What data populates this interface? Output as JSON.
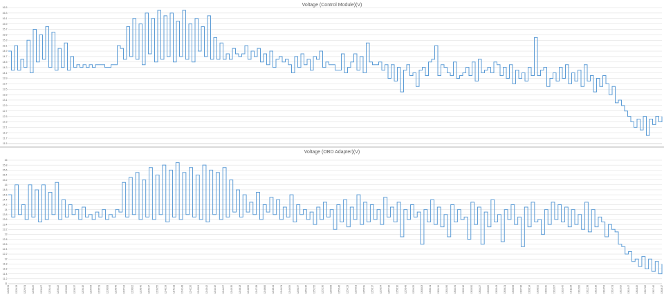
{
  "colors": {
    "series": "#5b9bd5",
    "grid": "#d9d9d9",
    "text": "#595959",
    "background": "#ffffff"
  },
  "chart_data": [
    {
      "type": "line",
      "title": "Voltage (Control Module)(V)",
      "xlabel": "",
      "ylabel": "",
      "ylim": [
        11.5,
        16.5
      ],
      "yticks": [
        11.5,
        11.7,
        11.9,
        12.1,
        12.3,
        12.5,
        12.7,
        12.9,
        13.1,
        13.3,
        13.5,
        13.7,
        13.9,
        14.1,
        14.3,
        14.5,
        14.7,
        14.9,
        15.1,
        15.3,
        15.5,
        15.7,
        15.9,
        16.1,
        16.3,
        16.5
      ],
      "ytick_labels": [
        "11.5",
        "11.7",
        "11.9",
        "12.1",
        "12.3",
        "12.5",
        "12.7",
        "12.9",
        "13.1",
        "13.3",
        "13.5",
        "13.7",
        "13.9",
        "14.1",
        "14.3",
        "14.5",
        "14.7",
        "14.9",
        "15.1",
        "15.3",
        "15.5",
        "15.7",
        "15.9",
        "16.1",
        "16.3",
        "16.5"
      ],
      "grid": true,
      "legend": "none",
      "series": [
        {
          "values": [
            14.9,
            14.2,
            15.1,
            14.2,
            14.6,
            14.3,
            15.3,
            14.1,
            15.7,
            14.5,
            15.5,
            14.6,
            15.8,
            14.3,
            15.6,
            14.2,
            15.0,
            14.3,
            15.2,
            14.2,
            14.7,
            14.3,
            14.4,
            14.3,
            14.4,
            14.3,
            14.4,
            14.3,
            14.4,
            14.4,
            14.4,
            14.3,
            14.3,
            14.4,
            14.4,
            15.1,
            15.0,
            14.6,
            15.8,
            14.7,
            16.1,
            14.6,
            15.9,
            14.4,
            16.3,
            14.8,
            16.1,
            14.5,
            16.4,
            14.6,
            16.2,
            14.7,
            16.3,
            14.5,
            16.0,
            14.7,
            16.4,
            14.6,
            15.9,
            14.5,
            16.1,
            14.9,
            15.8,
            14.7,
            16.2,
            14.6,
            15.4,
            14.6,
            15.2,
            14.6,
            14.8,
            14.6,
            15.0,
            14.8,
            14.7,
            14.8,
            15.1,
            14.6,
            14.9,
            14.7,
            15.0,
            14.5,
            14.8,
            14.4,
            14.9,
            14.3,
            14.6,
            14.7,
            14.5,
            14.6,
            14.4,
            14.1,
            14.7,
            14.3,
            14.8,
            14.4,
            14.6,
            14.2,
            14.7,
            14.6,
            14.9,
            14.3,
            14.5,
            14.4,
            14.4,
            14.2,
            14.2,
            14.8,
            14.1,
            14.3,
            14.5,
            14.8,
            14.2,
            14.7,
            14.1,
            15.2,
            14.5,
            14.4,
            14.4,
            14.5,
            14.2,
            14.4,
            13.9,
            14.4,
            13.8,
            14.3,
            13.4,
            14.2,
            14.4,
            14.0,
            14.1,
            13.6,
            14.2,
            14.3,
            14.0,
            14.5,
            14.6,
            15.1,
            14.0,
            14.4,
            14.3,
            14.1,
            14.0,
            14.5,
            13.9,
            14.0,
            14.1,
            14.3,
            14.0,
            14.5,
            13.8,
            14.6,
            14.1,
            14.2,
            14.3,
            14.1,
            14.5,
            14.4,
            14.0,
            14.3,
            13.9,
            14.4,
            13.7,
            14.2,
            13.9,
            14.1,
            13.8,
            14.3,
            14.0,
            15.4,
            14.0,
            14.2,
            14.3,
            13.6,
            13.9,
            14.1,
            13.8,
            14.3,
            13.9,
            14.4,
            13.7,
            14.1,
            13.8,
            14.2,
            13.6,
            14.4,
            13.8,
            14.0,
            13.4,
            13.9,
            13.6,
            14.0,
            13.7,
            13.3,
            13.6,
            13.0,
            13.1,
            12.9,
            12.7,
            12.5,
            12.3,
            12.1,
            12.4,
            12.0,
            12.5,
            11.8,
            12.4,
            12.2,
            12.5,
            12.3,
            12.5
          ]
        }
      ]
    },
    {
      "type": "line",
      "title": "Voltage (OBD Adapter)(V)",
      "xlabel": "",
      "ylabel": "",
      "ylim": [
        11.0,
        16.0
      ],
      "yticks": [
        11.0,
        11.2,
        11.4,
        11.6,
        11.8,
        12.0,
        12.2,
        12.4,
        12.6,
        12.8,
        13.0,
        13.2,
        13.4,
        13.6,
        13.8,
        14.0,
        14.2,
        14.4,
        14.6,
        14.8,
        15.0,
        15.2,
        15.4,
        15.6,
        15.8,
        16.0
      ],
      "ytick_labels": [
        "11",
        "11.2",
        "11.4",
        "11.6",
        "11.8",
        "12",
        "12.2",
        "12.4",
        "12.6",
        "12.8",
        "13",
        "13.2",
        "13.4",
        "13.6",
        "13.8",
        "14",
        "14.2",
        "14.4",
        "14.6",
        "14.8",
        "15",
        "15.2",
        "15.4",
        "15.6",
        "15.8",
        "16"
      ],
      "grid": true,
      "legend": "none",
      "series": [
        {
          "values": [
            14.6,
            13.7,
            15.0,
            13.8,
            14.2,
            13.6,
            15.0,
            13.7,
            14.8,
            13.5,
            15.0,
            13.6,
            14.7,
            13.8,
            15.1,
            13.6,
            14.4,
            13.7,
            14.2,
            13.8,
            14.0,
            13.6,
            14.1,
            13.7,
            13.8,
            13.6,
            13.9,
            13.7,
            14.0,
            13.6,
            13.8,
            13.7,
            14.0,
            13.9,
            15.1,
            13.7,
            15.3,
            13.8,
            15.5,
            13.6,
            15.2,
            13.7,
            15.7,
            13.6,
            15.4,
            13.8,
            15.8,
            13.5,
            15.6,
            13.7,
            15.9,
            13.6,
            15.5,
            13.8,
            15.7,
            13.7,
            15.4,
            13.6,
            15.8,
            13.5,
            15.6,
            13.8,
            15.5,
            13.6,
            15.7,
            13.7,
            15.2,
            13.9,
            14.8,
            13.7,
            14.6,
            13.9,
            14.3,
            13.8,
            14.7,
            13.6,
            14.2,
            13.9,
            14.5,
            13.8,
            14.4,
            13.6,
            14.1,
            13.7,
            14.6,
            13.5,
            14.2,
            13.8,
            14.0,
            13.6,
            13.9,
            13.4,
            14.1,
            13.6,
            14.3,
            13.7,
            14.0,
            13.2,
            14.2,
            13.5,
            14.4,
            13.3,
            14.1,
            13.6,
            14.6,
            13.4,
            14.3,
            13.5,
            14.2,
            13.6,
            14.0,
            13.4,
            14.5,
            13.7,
            14.1,
            13.5,
            14.3,
            12.9,
            14.0,
            13.6,
            14.2,
            13.7,
            13.9,
            12.6,
            14.0,
            13.5,
            14.4,
            13.4,
            14.1,
            13.3,
            13.8,
            12.9,
            14.2,
            13.5,
            14.0,
            13.6,
            13.7,
            12.8,
            14.3,
            13.4,
            14.1,
            12.6,
            13.9,
            13.3,
            14.4,
            13.5,
            13.8,
            12.7,
            14.0,
            13.6,
            14.2,
            13.4,
            13.7,
            12.5,
            14.1,
            13.3,
            14.3,
            13.5,
            13.6,
            13.0,
            14.0,
            13.4,
            14.3,
            13.6,
            14.2,
            13.5,
            14.1,
            13.3,
            14.0,
            13.4,
            13.8,
            13.2,
            14.3,
            13.1,
            14.0,
            13.3,
            13.7,
            13.5,
            12.9,
            13.4,
            13.2,
            13.1,
            12.6,
            12.5,
            12.2,
            12.3,
            11.9,
            12.0,
            11.7,
            12.1,
            11.6,
            12.0,
            11.5,
            11.9,
            11.4,
            11.8
          ]
        }
      ]
    }
  ],
  "x_labels": [
    "12:28:34",
    "12:29:13",
    "12:29:51",
    "12:30:29",
    "12:31:07",
    "12:31:44",
    "12:32:22",
    "12:33:00",
    "12:33:37",
    "12:34:15",
    "12:34:53",
    "12:35:31",
    "12:36:08",
    "12:36:46",
    "12:37:24",
    "12:38:02",
    "12:38:40",
    "12:39:17",
    "12:39:55",
    "12:40:33",
    "12:41:11",
    "12:41:48",
    "12:42:26",
    "12:43:04",
    "12:43:42",
    "12:44:19",
    "12:44:57",
    "12:45:35",
    "12:46:13",
    "12:46:50",
    "12:47:28",
    "12:48:06",
    "12:48:44",
    "12:49:21",
    "12:49:59",
    "12:50:37",
    "12:51:15",
    "12:51:52",
    "12:52:30",
    "12:53:08",
    "12:53:46",
    "12:54:23",
    "12:55:01",
    "12:55:39",
    "12:56:17",
    "12:56:54",
    "12:57:32",
    "12:58:10",
    "12:58:48",
    "12:59:25",
    "13:00:03",
    "13:00:41",
    "13:01:19",
    "13:01:56",
    "13:02:34",
    "13:03:12",
    "13:03:50",
    "13:04:27",
    "13:05:05",
    "13:05:43",
    "13:06:21",
    "13:06:58",
    "13:07:36",
    "13:08:14",
    "13:08:52",
    "13:09:29",
    "13:10:07",
    "13:10:45",
    "13:11:23",
    "13:12:00",
    "13:12:38",
    "13:13:16",
    "13:13:54",
    "13:14:31",
    "13:15:09",
    "13:15:47",
    "13:16:25",
    "13:17:02",
    "13:17:40",
    "13:18:17"
  ]
}
